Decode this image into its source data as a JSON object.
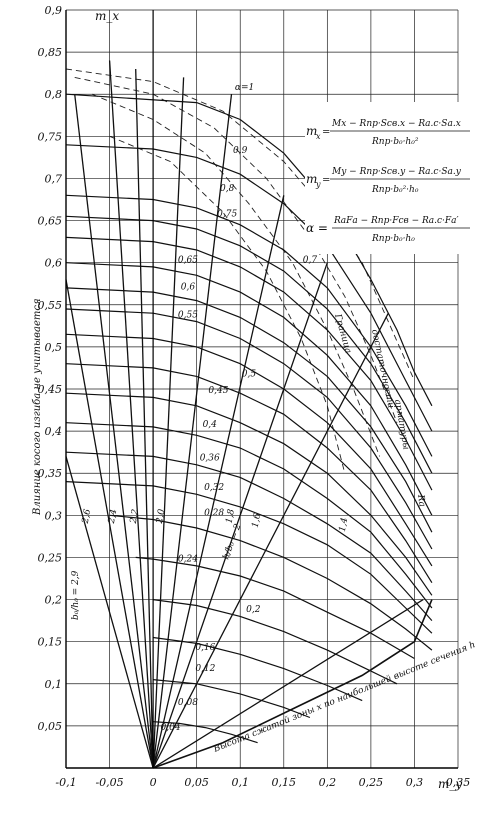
{
  "chart_data": {
    "type": "line",
    "title": "",
    "xlabel": "m_y",
    "ylabel": "m_x",
    "xlim": [
      -0.1,
      0.35
    ],
    "ylim": [
      0.0,
      0.9
    ],
    "x_ticks": [
      "-0,1",
      "-0,05",
      "0",
      "0,05",
      "0,1",
      "0,15",
      "0,2",
      "0,25",
      "0,3",
      "0,35"
    ],
    "y_ticks": [
      "0,05",
      "0,1",
      "0,15",
      "0,2",
      "0,25",
      "0,3",
      "0,35",
      "0,4",
      "0,45",
      "0,5",
      "0,55",
      "0,6",
      "0,65",
      "0,7",
      "0,75",
      "0,8",
      "0,85",
      "0,9"
    ],
    "grid": true,
    "formulas": {
      "mx_lhs": "m",
      "mx_sub": "x",
      "mx_num": "Mx − Rпр·Sсв.x − Rа.с·Sа.x",
      "mx_den": "Rпр·b₀·h₀²",
      "my_lhs": "m",
      "my_sub": "y",
      "my_num": "My − Rпр·Sсв.y − Rа.с·Sа.y",
      "my_den": "Rпр·b₀²·h₀",
      "alpha_lhs": "α =",
      "alpha_num": "RаFа − Rпр·Fсв − Rа.с·Fа′",
      "alpha_den": "Rпр·b₀·h₀"
    },
    "side_texts": {
      "left_vertical": "Влияние косого изгиба не учитывается",
      "right_vertical_1": "Граница",
      "right_vertical_2": "достаточности",
      "right_vertical_3": "арматуры",
      "right_vertical_4": "Ra",
      "bottom_diagonal": "Высота сжатой зоны x по наибольшей высоте сечения h",
      "ratio_label": "b₀/h₀ = 2,9",
      "ratio_label2": "h/b₀ = 2"
    },
    "alpha_curve_labels": [
      "α=1",
      "0,9",
      "0,8",
      "0,75",
      "0,7",
      "0,65",
      "0,6",
      "0,55",
      "0,5",
      "0,45",
      "0,4",
      "0,36",
      "0,32",
      "0,28",
      "0,24",
      "0,2",
      "0,16",
      "0,12",
      "0,08",
      "0,04"
    ],
    "ratio_ray_labels": [
      "2,6",
      "2,4",
      "2,2",
      "2,0",
      "1,8",
      "1,6",
      "1,4"
    ],
    "alpha_curves": [
      {
        "label": "α=1",
        "mx0": 0.8,
        "a": 0.48,
        "pts": [
          [
            -0.1,
            0.8
          ],
          [
            0.05,
            0.79
          ],
          [
            0.1,
            0.77
          ],
          [
            0.15,
            0.73
          ],
          [
            0.2,
            0.67
          ],
          [
            0.25,
            0.58
          ],
          [
            0.28,
            0.52
          ],
          [
            0.3,
            0.47
          ],
          [
            0.32,
            0.43
          ]
        ]
      },
      {
        "label": "0,9",
        "pts": [
          [
            -0.1,
            0.74
          ],
          [
            0.0,
            0.735
          ],
          [
            0.05,
            0.725
          ],
          [
            0.1,
            0.705
          ],
          [
            0.15,
            0.67
          ],
          [
            0.2,
            0.62
          ],
          [
            0.25,
            0.54
          ],
          [
            0.29,
            0.46
          ],
          [
            0.32,
            0.4
          ]
        ]
      },
      {
        "label": "0,8",
        "pts": [
          [
            -0.1,
            0.68
          ],
          [
            0.0,
            0.675
          ],
          [
            0.05,
            0.665
          ],
          [
            0.1,
            0.645
          ],
          [
            0.15,
            0.615
          ],
          [
            0.2,
            0.57
          ],
          [
            0.25,
            0.5
          ],
          [
            0.29,
            0.43
          ],
          [
            0.32,
            0.37
          ]
        ]
      },
      {
        "label": "0,75",
        "pts": [
          [
            -0.1,
            0.655
          ],
          [
            0.0,
            0.65
          ],
          [
            0.05,
            0.64
          ],
          [
            0.1,
            0.62
          ],
          [
            0.15,
            0.59
          ],
          [
            0.2,
            0.545
          ],
          [
            0.25,
            0.48
          ],
          [
            0.29,
            0.41
          ],
          [
            0.32,
            0.35
          ]
        ]
      },
      {
        "label": "0,7",
        "pts": [
          [
            -0.1,
            0.63
          ],
          [
            0.0,
            0.625
          ],
          [
            0.05,
            0.615
          ],
          [
            0.1,
            0.595
          ],
          [
            0.15,
            0.565
          ],
          [
            0.2,
            0.52
          ],
          [
            0.25,
            0.46
          ],
          [
            0.29,
            0.39
          ],
          [
            0.32,
            0.33
          ]
        ]
      },
      {
        "label": "0,65",
        "pts": [
          [
            -0.1,
            0.6
          ],
          [
            0.0,
            0.595
          ],
          [
            0.05,
            0.585
          ],
          [
            0.1,
            0.565
          ],
          [
            0.15,
            0.535
          ],
          [
            0.2,
            0.49
          ],
          [
            0.25,
            0.43
          ],
          [
            0.29,
            0.36
          ],
          [
            0.32,
            0.3
          ]
        ]
      },
      {
        "label": "0,6",
        "pts": [
          [
            -0.1,
            0.57
          ],
          [
            0.0,
            0.565
          ],
          [
            0.05,
            0.555
          ],
          [
            0.1,
            0.535
          ],
          [
            0.15,
            0.505
          ],
          [
            0.2,
            0.465
          ],
          [
            0.25,
            0.405
          ],
          [
            0.29,
            0.34
          ],
          [
            0.32,
            0.28
          ]
        ]
      },
      {
        "label": "0,55",
        "pts": [
          [
            -0.1,
            0.545
          ],
          [
            0.0,
            0.54
          ],
          [
            0.05,
            0.53
          ],
          [
            0.1,
            0.51
          ],
          [
            0.15,
            0.48
          ],
          [
            0.2,
            0.44
          ],
          [
            0.25,
            0.38
          ],
          [
            0.29,
            0.315
          ],
          [
            0.32,
            0.26
          ]
        ]
      },
      {
        "label": "0,5",
        "pts": [
          [
            -0.1,
            0.515
          ],
          [
            0.0,
            0.51
          ],
          [
            0.05,
            0.5
          ],
          [
            0.1,
            0.48
          ],
          [
            0.15,
            0.45
          ],
          [
            0.2,
            0.41
          ],
          [
            0.25,
            0.355
          ],
          [
            0.29,
            0.29
          ],
          [
            0.32,
            0.24
          ]
        ]
      },
      {
        "label": "0,45",
        "pts": [
          [
            -0.1,
            0.48
          ],
          [
            0.0,
            0.475
          ],
          [
            0.05,
            0.465
          ],
          [
            0.1,
            0.445
          ],
          [
            0.15,
            0.42
          ],
          [
            0.2,
            0.38
          ],
          [
            0.25,
            0.33
          ],
          [
            0.29,
            0.27
          ],
          [
            0.32,
            0.22
          ]
        ]
      },
      {
        "label": "0,4",
        "pts": [
          [
            -0.1,
            0.445
          ],
          [
            0.0,
            0.44
          ],
          [
            0.05,
            0.43
          ],
          [
            0.1,
            0.41
          ],
          [
            0.15,
            0.385
          ],
          [
            0.2,
            0.35
          ],
          [
            0.25,
            0.3
          ],
          [
            0.29,
            0.25
          ],
          [
            0.32,
            0.205
          ]
        ]
      },
      {
        "label": "0,36",
        "pts": [
          [
            -0.1,
            0.41
          ],
          [
            0.0,
            0.405
          ],
          [
            0.05,
            0.395
          ],
          [
            0.1,
            0.38
          ],
          [
            0.15,
            0.355
          ],
          [
            0.2,
            0.32
          ],
          [
            0.25,
            0.28
          ],
          [
            0.29,
            0.23
          ],
          [
            0.32,
            0.19
          ]
        ]
      },
      {
        "label": "0,32",
        "pts": [
          [
            -0.1,
            0.375
          ],
          [
            0.0,
            0.37
          ],
          [
            0.05,
            0.36
          ],
          [
            0.1,
            0.345
          ],
          [
            0.15,
            0.32
          ],
          [
            0.2,
            0.29
          ],
          [
            0.25,
            0.255
          ],
          [
            0.29,
            0.21
          ],
          [
            0.32,
            0.175
          ]
        ]
      },
      {
        "label": "0,28",
        "pts": [
          [
            -0.1,
            0.34
          ],
          [
            0.0,
            0.335
          ],
          [
            0.05,
            0.325
          ],
          [
            0.1,
            0.31
          ],
          [
            0.15,
            0.29
          ],
          [
            0.2,
            0.265
          ],
          [
            0.25,
            0.23
          ],
          [
            0.29,
            0.19
          ],
          [
            0.32,
            0.16
          ]
        ]
      },
      {
        "label": "0,24",
        "pts": [
          [
            -0.05,
            0.3
          ],
          [
            0.0,
            0.295
          ],
          [
            0.05,
            0.285
          ],
          [
            0.1,
            0.27
          ],
          [
            0.15,
            0.25
          ],
          [
            0.2,
            0.225
          ],
          [
            0.25,
            0.195
          ],
          [
            0.29,
            0.165
          ],
          [
            0.32,
            0.14
          ]
        ]
      },
      {
        "label": "0,2",
        "pts": [
          [
            -0.02,
            0.25
          ],
          [
            0.0,
            0.248
          ],
          [
            0.05,
            0.24
          ],
          [
            0.1,
            0.228
          ],
          [
            0.15,
            0.21
          ],
          [
            0.2,
            0.185
          ],
          [
            0.25,
            0.16
          ],
          [
            0.3,
            0.13
          ]
        ]
      },
      {
        "label": "0,16",
        "pts": [
          [
            0.0,
            0.2
          ],
          [
            0.05,
            0.193
          ],
          [
            0.1,
            0.18
          ],
          [
            0.15,
            0.162
          ],
          [
            0.2,
            0.14
          ],
          [
            0.25,
            0.115
          ],
          [
            0.28,
            0.1
          ]
        ]
      },
      {
        "label": "0,12",
        "pts": [
          [
            0.0,
            0.155
          ],
          [
            0.05,
            0.148
          ],
          [
            0.1,
            0.135
          ],
          [
            0.15,
            0.118
          ],
          [
            0.2,
            0.098
          ],
          [
            0.24,
            0.08
          ]
        ]
      },
      {
        "label": "0,08",
        "pts": [
          [
            0.0,
            0.105
          ],
          [
            0.05,
            0.1
          ],
          [
            0.1,
            0.088
          ],
          [
            0.15,
            0.072
          ],
          [
            0.18,
            0.06
          ]
        ]
      },
      {
        "label": "0,04",
        "pts": [
          [
            0.0,
            0.055
          ],
          [
            0.03,
            0.053
          ],
          [
            0.06,
            0.048
          ],
          [
            0.09,
            0.04
          ],
          [
            0.12,
            0.03
          ]
        ]
      }
    ],
    "rays_from_origin": [
      {
        "pts": [
          [
            0.0,
            0.0
          ],
          [
            -0.1,
            0.58
          ]
        ]
      },
      {
        "pts": [
          [
            0.0,
            0.0
          ],
          [
            -0.1,
            0.37
          ]
        ]
      },
      {
        "pts": [
          [
            0.0,
            0.0
          ],
          [
            -0.09,
            0.8
          ]
        ]
      },
      {
        "pts": [
          [
            0.0,
            0.0
          ],
          [
            -0.05,
            0.84
          ]
        ]
      },
      {
        "pts": [
          [
            0.0,
            0.0
          ],
          [
            -0.02,
            0.83
          ]
        ]
      },
      {
        "pts": [
          [
            0.0,
            0.0
          ],
          [
            0.035,
            0.82
          ]
        ]
      },
      {
        "pts": [
          [
            0.0,
            0.0
          ],
          [
            0.09,
            0.8
          ]
        ]
      },
      {
        "pts": [
          [
            0.0,
            0.0
          ],
          [
            0.15,
            0.68
          ]
        ]
      },
      {
        "pts": [
          [
            0.0,
            0.0
          ],
          [
            0.2,
            0.6
          ]
        ]
      },
      {
        "pts": [
          [
            0.0,
            0.0
          ],
          [
            0.27,
            0.54
          ]
        ]
      },
      {
        "pts": [
          [
            0.0,
            0.0
          ],
          [
            0.31,
            0.2
          ]
        ]
      }
    ],
    "dashed_envelopes": [
      {
        "pts": [
          [
            -0.1,
            0.83
          ],
          [
            0.0,
            0.815
          ],
          [
            0.08,
            0.78
          ],
          [
            0.15,
            0.72
          ],
          [
            0.2,
            0.66
          ],
          [
            0.24,
            0.6
          ],
          [
            0.27,
            0.53
          ],
          [
            0.3,
            0.46
          ]
        ]
      },
      {
        "pts": [
          [
            -0.09,
            0.82
          ],
          [
            0.0,
            0.8
          ],
          [
            0.07,
            0.76
          ],
          [
            0.13,
            0.7
          ],
          [
            0.18,
            0.63
          ],
          [
            0.22,
            0.56
          ],
          [
            0.25,
            0.49
          ],
          [
            0.28,
            0.41
          ]
        ]
      },
      {
        "pts": [
          [
            -0.07,
            0.8
          ],
          [
            0.0,
            0.77
          ],
          [
            0.06,
            0.73
          ],
          [
            0.11,
            0.67
          ],
          [
            0.16,
            0.6
          ],
          [
            0.2,
            0.52
          ],
          [
            0.23,
            0.45
          ],
          [
            0.26,
            0.37
          ]
        ]
      },
      {
        "pts": [
          [
            -0.05,
            0.75
          ],
          [
            0.02,
            0.72
          ],
          [
            0.08,
            0.66
          ],
          [
            0.13,
            0.59
          ],
          [
            0.17,
            0.51
          ],
          [
            0.2,
            0.43
          ],
          [
            0.22,
            0.35
          ]
        ]
      }
    ],
    "bottom_boundary": {
      "pts": [
        [
          0.0,
          0.0
        ],
        [
          0.08,
          0.03
        ],
        [
          0.16,
          0.07
        ],
        [
          0.24,
          0.11
        ],
        [
          0.3,
          0.15
        ],
        [
          0.32,
          0.2
        ]
      ]
    }
  }
}
